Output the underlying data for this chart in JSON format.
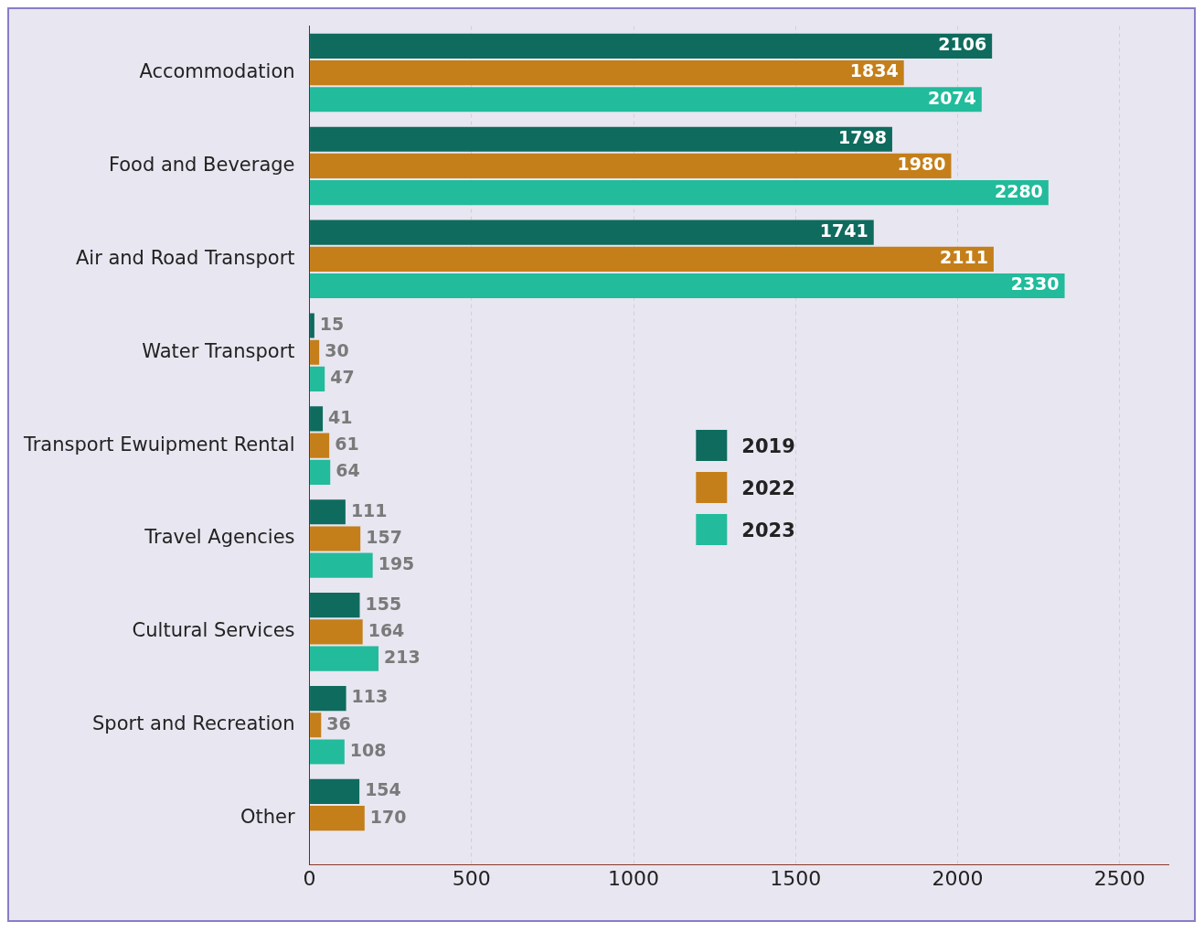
{
  "chart_data": {
    "type": "bar",
    "orientation": "horizontal",
    "categories": [
      "Accommodation",
      "Food and Beverage",
      "Air and Road Transport",
      "Water Transport",
      "Transport Ewuipment Rental",
      "Travel Agencies",
      "Cultural Services",
      "Sport and Recreation",
      "Other"
    ],
    "series": [
      {
        "name": "2019",
        "color": "#0e6b5e",
        "values": [
          2106,
          1798,
          1741,
          15,
          41,
          111,
          155,
          113,
          154
        ]
      },
      {
        "name": "2022",
        "color": "#c47f1a",
        "values": [
          1834,
          1980,
          2111,
          30,
          61,
          157,
          164,
          36,
          170
        ]
      },
      {
        "name": "2023",
        "color": "#22bb9b",
        "values": [
          2074,
          2280,
          2330,
          47,
          64,
          195,
          213,
          108,
          null
        ]
      }
    ],
    "xlim": [
      0,
      2650
    ],
    "xticks": [
      0,
      500,
      1000,
      1500,
      2000,
      2500
    ],
    "grid": "x",
    "legend": "center",
    "data_labels": true
  }
}
